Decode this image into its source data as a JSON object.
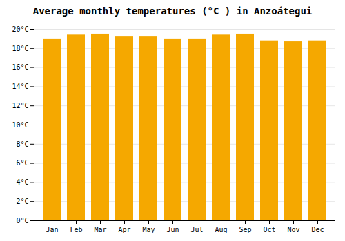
{
  "chart_data": {
    "type": "bar",
    "title": "Average monthly temperatures (°C ) in Anzoátegui",
    "categories": [
      "Jan",
      "Feb",
      "Mar",
      "Apr",
      "May",
      "Jun",
      "Jul",
      "Aug",
      "Sep",
      "Oct",
      "Nov",
      "Dec"
    ],
    "values": [
      19.0,
      19.4,
      19.5,
      19.2,
      19.2,
      19.0,
      19.0,
      19.4,
      19.5,
      18.8,
      18.7,
      18.8
    ],
    "color": "#F5A800",
    "ylim": [
      0,
      20
    ],
    "yticks": [
      {
        "value": 0,
        "label": "0°C"
      },
      {
        "value": 2,
        "label": "2°C"
      },
      {
        "value": 4,
        "label": "4°C"
      },
      {
        "value": 6,
        "label": "6°C"
      },
      {
        "value": 8,
        "label": "8°C"
      },
      {
        "value": 10,
        "label": "10°C"
      },
      {
        "value": 12,
        "label": "12°C"
      },
      {
        "value": 14,
        "label": "14°C"
      },
      {
        "value": 16,
        "label": "16°C"
      },
      {
        "value": 18,
        "label": "18°C"
      },
      {
        "value": 20,
        "label": "20°C"
      }
    ],
    "grid": true
  }
}
